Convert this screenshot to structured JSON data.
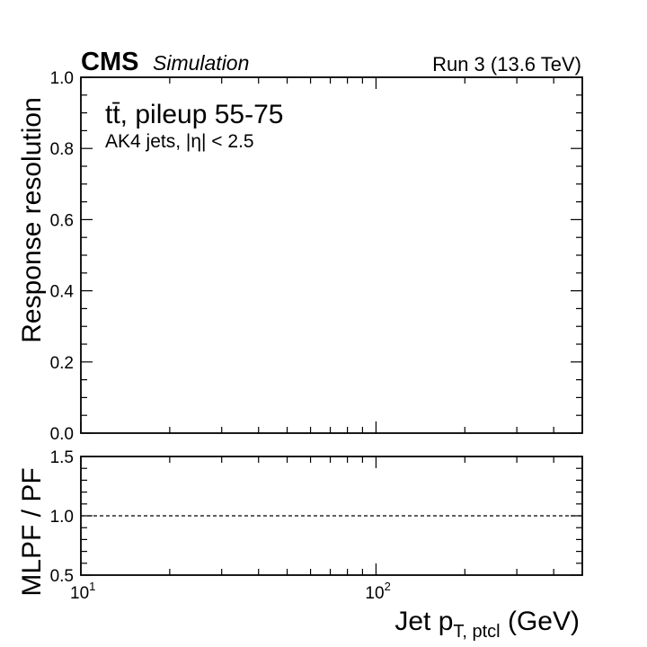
{
  "header": {
    "experiment": "CMS",
    "status": "Simulation",
    "run": "Run 3 (13.6 TeV)"
  },
  "chart_data": [
    {
      "type": "line",
      "y_label": "Response resolution",
      "annotations": [
        "tt̄, pileup 55-75",
        "AK4 jets, |η| < 2.5"
      ],
      "series": [],
      "log_x": true,
      "xlim": [
        10,
        500
      ],
      "xticks": [
        10,
        100
      ],
      "xminorticks": [
        20,
        30,
        40,
        50,
        60,
        70,
        80,
        90,
        200,
        300,
        400
      ],
      "ylim": [
        0,
        1
      ],
      "yticks": [
        {
          "value": 0,
          "label": "0.0"
        },
        {
          "value": 0.2,
          "label": "0.2"
        },
        {
          "value": 0.4,
          "label": "0.4"
        },
        {
          "value": 0.6,
          "label": "0.6"
        },
        {
          "value": 0.8,
          "label": "0.8"
        },
        {
          "value": 1,
          "label": "1.0"
        }
      ],
      "yminorticks": [
        0.05,
        0.1,
        0.15,
        0.25,
        0.3,
        0.35,
        0.45,
        0.5,
        0.55,
        0.65,
        0.7,
        0.75,
        0.85,
        0.9,
        0.95
      ]
    },
    {
      "type": "line",
      "y_label": "MLPF / PF",
      "x_label": {
        "main": "Jet p",
        "sub": "T, ptcl",
        "tail": " (GeV)"
      },
      "series": [],
      "log_x": true,
      "reference_line": 1,
      "xlim": [
        10,
        500
      ],
      "xticks": [
        {
          "value": 10,
          "label": "10",
          "exponent": "1"
        },
        {
          "value": 100,
          "label": "10",
          "exponent": "2"
        }
      ],
      "xminorticks": [
        20,
        30,
        40,
        50,
        60,
        70,
        80,
        90,
        200,
        300,
        400
      ],
      "ylim": [
        0.5,
        1.5
      ],
      "yticks": [
        {
          "value": 0.5,
          "label": "0.5"
        },
        {
          "value": 1,
          "label": "1.0"
        },
        {
          "value": 1.5,
          "label": "1.5"
        }
      ],
      "yminorticks": [
        0.6,
        0.7,
        0.8,
        0.9,
        1.1,
        1.2,
        1.3,
        1.4
      ]
    }
  ]
}
